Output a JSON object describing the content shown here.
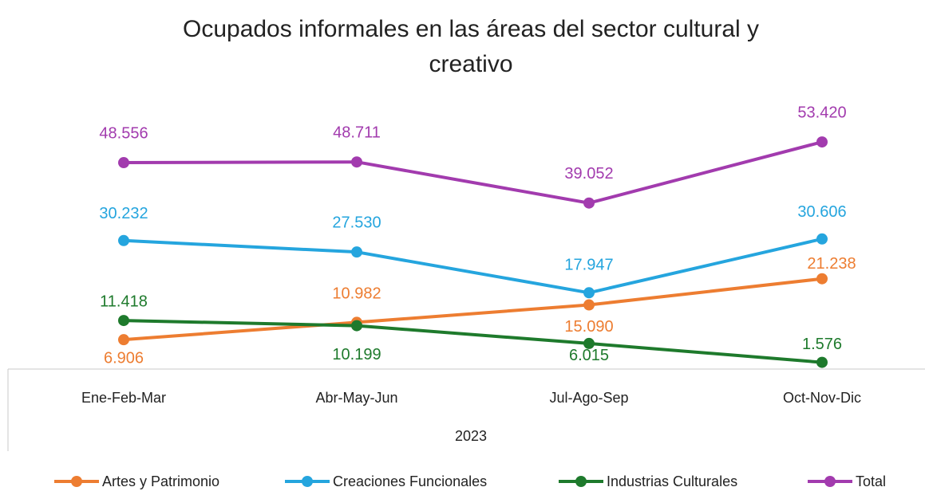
{
  "chart_data": {
    "type": "line",
    "title": "Ocupados informales en las áreas del sector cultural y creativo",
    "categories": [
      "Ene-Feb-Mar",
      "Abr-May-Jun",
      "Jul-Ago-Sep",
      "Oct-Nov-Dic"
    ],
    "category_group": "2023",
    "ylim": [
      0,
      60000
    ],
    "legend": "bottom",
    "series": [
      {
        "name": "Artes y Patrimonio",
        "color": "#ED7D31",
        "values": [
          6906,
          10982,
          15090,
          21238
        ],
        "value_labels": [
          "6.906",
          "10.982",
          "15.090",
          "21.238"
        ]
      },
      {
        "name": "Creaciones Funcionales",
        "color": "#25A5DE",
        "values": [
          30232,
          27530,
          17947,
          30606
        ],
        "value_labels": [
          "30.232",
          "27.530",
          "17.947",
          "30.606"
        ]
      },
      {
        "name": "Industrias Culturales",
        "color": "#1E7A2C",
        "values": [
          11418,
          10199,
          6015,
          1576
        ],
        "value_labels": [
          "11.418",
          "10.199",
          "6.015",
          "1.576"
        ]
      },
      {
        "name": "Total",
        "color": "#A23BAE",
        "values": [
          48556,
          48711,
          39052,
          53420
        ],
        "value_labels": [
          "48.556",
          "48.711",
          "39.052",
          "53.420"
        ]
      }
    ]
  }
}
